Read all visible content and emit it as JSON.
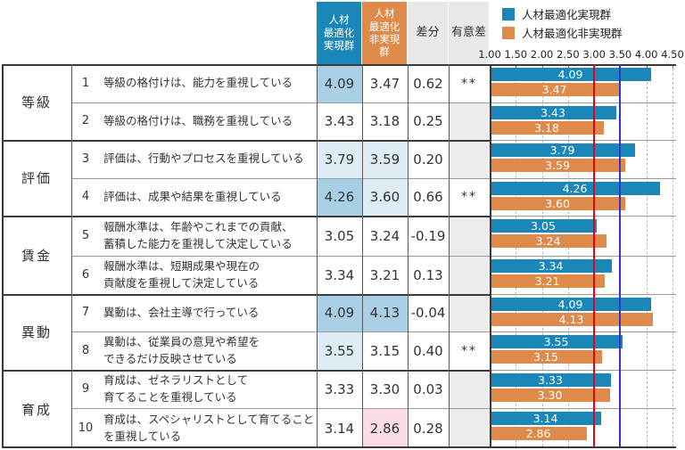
{
  "legend": {
    "items": [
      {
        "label": "人材最適化実現群",
        "color": "#1b87b8"
      },
      {
        "label": "人材最適化非実現群",
        "color": "#dd8a4a"
      }
    ]
  },
  "header": {
    "col_realized": "人材\n最適化\n実現群",
    "col_unrealized": "人材\n最適化\n非実現\n群",
    "col_diff": "差分",
    "col_sig": "有意差"
  },
  "axis": {
    "ticks": [
      "1.00",
      "1.50",
      "2.00",
      "2.50",
      "3.00",
      "3.50",
      "4.00",
      "4.50"
    ],
    "min": 1.0,
    "max": 4.5
  },
  "groups": [
    {
      "label": "等級"
    },
    {
      "label": "評価"
    },
    {
      "label": "賃金"
    },
    {
      "label": "異動"
    },
    {
      "label": "育成"
    }
  ],
  "rows": [
    {
      "no": "1",
      "item": "等級の格付けは、能力を重視している",
      "realized": "4.09",
      "unrealized": "3.47",
      "diff": "0.62",
      "sig": "**",
      "realized_hl": "mid",
      "unrealized_hl": "none"
    },
    {
      "no": "2",
      "item": "等級の格付けは、職務を重視している",
      "realized": "3.43",
      "unrealized": "3.18",
      "diff": "0.25",
      "sig": "",
      "realized_hl": "none",
      "unrealized_hl": "none"
    },
    {
      "no": "3",
      "item": "評価は、行動やプロセスを重視している",
      "realized": "3.79",
      "unrealized": "3.59",
      "diff": "0.20",
      "sig": "",
      "realized_hl": "light",
      "unrealized_hl": "light"
    },
    {
      "no": "4",
      "item": "評価は、成果や結果を重視している",
      "realized": "4.26",
      "unrealized": "3.60",
      "diff": "0.66",
      "sig": "**",
      "realized_hl": "mid",
      "unrealized_hl": "light"
    },
    {
      "no": "5",
      "item": "報酬水準は、年齢やこれまでの貢献、\n蓄積した能力を重視して決定している",
      "realized": "3.05",
      "unrealized": "3.24",
      "diff": "-0.19",
      "sig": "",
      "realized_hl": "none",
      "unrealized_hl": "none"
    },
    {
      "no": "6",
      "item": "報酬水準は、短期成果や現在の\n貢献度を重視して決定している",
      "realized": "3.34",
      "unrealized": "3.21",
      "diff": "0.13",
      "sig": "",
      "realized_hl": "none",
      "unrealized_hl": "none"
    },
    {
      "no": "7",
      "item": "異動は、会社主導で行っている",
      "realized": "4.09",
      "unrealized": "4.13",
      "diff": "-0.04",
      "sig": "",
      "realized_hl": "mid",
      "unrealized_hl": "mid"
    },
    {
      "no": "8",
      "item": "異動は、従業員の意見や希望を\nできるだけ反映させている",
      "realized": "3.55",
      "unrealized": "3.15",
      "diff": "0.40",
      "sig": "**",
      "realized_hl": "light",
      "unrealized_hl": "none"
    },
    {
      "no": "9",
      "item": "育成は、ゼネラリストとして\n育てることを重視している",
      "realized": "3.33",
      "unrealized": "3.30",
      "diff": "0.03",
      "sig": "",
      "realized_hl": "none",
      "unrealized_hl": "none"
    },
    {
      "no": "10",
      "item": "育成は、スペシャリストとして育てること\nを重視している",
      "realized": "3.14",
      "unrealized": "2.86",
      "diff": "0.28",
      "sig": "",
      "realized_hl": "none",
      "unrealized_hl": "pink"
    }
  ],
  "chart_data": {
    "type": "bar",
    "orientation": "horizontal",
    "categories": [
      "等級の格付けは、能力を重視している",
      "等級の格付けは、職務を重視している",
      "評価は、行動やプロセスを重視している",
      "評価は、成果や結果を重視している",
      "報酬水準は、年齢やこれまでの貢献、蓄積した能力を重視して決定している",
      "報酬水準は、短期成果や現在の貢献度を重視して決定している",
      "異動は、会社主導で行っている",
      "異動は、従業員の意見や希望をできるだけ反映させている",
      "育成は、ゼネラリストとして育てることを重視している",
      "育成は、スペシャリストとして育てることを重視している"
    ],
    "series": [
      {
        "name": "人材最適化実現群",
        "color": "#1b87b8",
        "values": [
          4.09,
          3.43,
          3.79,
          4.26,
          3.05,
          3.34,
          4.09,
          3.55,
          3.33,
          3.14
        ]
      },
      {
        "name": "人材最適化非実現群",
        "color": "#dd8a4a",
        "values": [
          3.47,
          3.18,
          3.59,
          3.6,
          3.24,
          3.21,
          4.13,
          3.15,
          3.3,
          2.86
        ]
      }
    ],
    "xlim": [
      1.0,
      4.5
    ],
    "tick_step": 0.5,
    "grid": true,
    "legend_position": "top-right",
    "reference_lines": [
      {
        "value": 3.0,
        "color": "#e60012",
        "style": "solid"
      },
      {
        "value": 3.5,
        "color": "#3333cc",
        "style": "solid"
      }
    ],
    "bar_value_labels": true
  },
  "colors": {
    "realized_blue": "#1b87b8",
    "unrealized_orange": "#dd8a4a",
    "cell_mid_blue": "#a9cfe4",
    "cell_light_blue": "#ddecf5",
    "cell_pink": "#fadce6",
    "header_gray": "#e9e9e9",
    "sig_empty_gray": "#ececec",
    "ref_red": "#e60012",
    "ref_blue": "#3333cc"
  }
}
